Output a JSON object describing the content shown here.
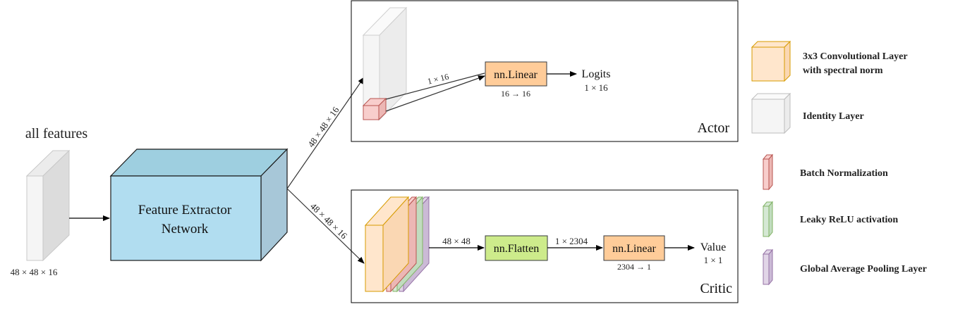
{
  "input": {
    "title": "all features",
    "dims": "48 × 48 × 16"
  },
  "extractor": {
    "line1": "Feature Extractor",
    "line2": "Network"
  },
  "edges": {
    "to_actor": "48 × 48 × 16",
    "to_critic": "48 × 48 × 16"
  },
  "actor": {
    "title": "Actor",
    "flow_label": "1 × 16",
    "linear_label": "nn.Linear",
    "linear_dims": "16 → 16",
    "output_label": "Logits",
    "output_dims": "1 × 16"
  },
  "critic": {
    "title": "Critic",
    "stack_label": "48 × 48",
    "flatten_label": "nn.Flatten",
    "flatten_out": "1 × 2304",
    "linear_label": "nn.Linear",
    "linear_dims": "2304 → 1",
    "output_label": "Value",
    "output_dims": "1 × 1"
  },
  "legend": [
    {
      "line1": "3x3 Convolutional Layer",
      "line2": "with spectral norm",
      "color": "#ffe6cc",
      "stroke": "#d79b00"
    },
    {
      "line1": "Identity Layer",
      "line2": "",
      "color": "#f5f5f5",
      "stroke": "#bdbdbd"
    },
    {
      "line1": "Batch Normalization",
      "line2": "",
      "color": "#f8cecc",
      "stroke": "#b85450"
    },
    {
      "line1": "Leaky ReLU activation",
      "line2": "",
      "color": "#d5e8d4",
      "stroke": "#82b366"
    },
    {
      "line1": "Global Average Pooling Layer",
      "line2": "",
      "color": "#e1d5e7",
      "stroke": "#9673a6"
    }
  ]
}
